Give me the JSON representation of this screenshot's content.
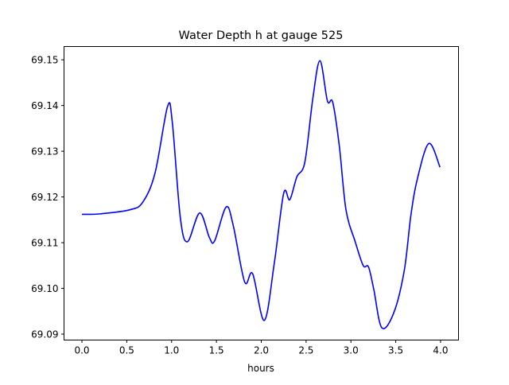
{
  "chart_data": {
    "type": "line",
    "title": "Water Depth h at gauge 525",
    "xlabel": "hours",
    "ylabel": "",
    "xlim": [
      -0.2,
      4.2
    ],
    "ylim": [
      69.0887,
      69.1529
    ],
    "xticks": [
      0.0,
      0.5,
      1.0,
      1.5,
      2.0,
      2.5,
      3.0,
      3.5,
      4.0
    ],
    "xtick_labels": [
      "0.0",
      "0.5",
      "1.0",
      "1.5",
      "2.0",
      "2.5",
      "3.0",
      "3.5",
      "4.0"
    ],
    "yticks": [
      69.09,
      69.1,
      69.11,
      69.12,
      69.13,
      69.14,
      69.15
    ],
    "ytick_labels": [
      "69.09",
      "69.10",
      "69.11",
      "69.12",
      "69.13",
      "69.14",
      "69.15"
    ],
    "grid": false,
    "series": [
      {
        "name": "h",
        "color": "#0000ff",
        "x": [
          0.0,
          0.2,
          0.535,
          0.68,
          0.816,
          0.955,
          1.008,
          1.097,
          1.177,
          1.313,
          1.422,
          1.48,
          1.608,
          1.688,
          1.815,
          1.904,
          2.034,
          2.146,
          2.25,
          2.318,
          2.397,
          2.486,
          2.575,
          2.655,
          2.738,
          2.797,
          2.871,
          2.945,
          3.048,
          3.137,
          3.196,
          3.255,
          3.344,
          3.477,
          3.595,
          3.669,
          3.743,
          3.87,
          3.994
        ],
        "y": [
          69.1162,
          69.1163,
          69.1172,
          69.1189,
          69.1253,
          69.1398,
          69.1363,
          69.1155,
          69.1102,
          69.1165,
          69.1111,
          69.1104,
          69.1178,
          69.1137,
          69.1014,
          69.1032,
          69.093,
          69.1056,
          69.1208,
          69.1194,
          69.1244,
          69.1276,
          69.1415,
          69.1498,
          69.141,
          69.1407,
          69.1311,
          69.1172,
          69.1102,
          69.105,
          69.1047,
          69.0998,
          69.0914,
          69.0946,
          69.1039,
          69.116,
          69.1241,
          69.1317,
          69.1265
        ]
      }
    ]
  }
}
